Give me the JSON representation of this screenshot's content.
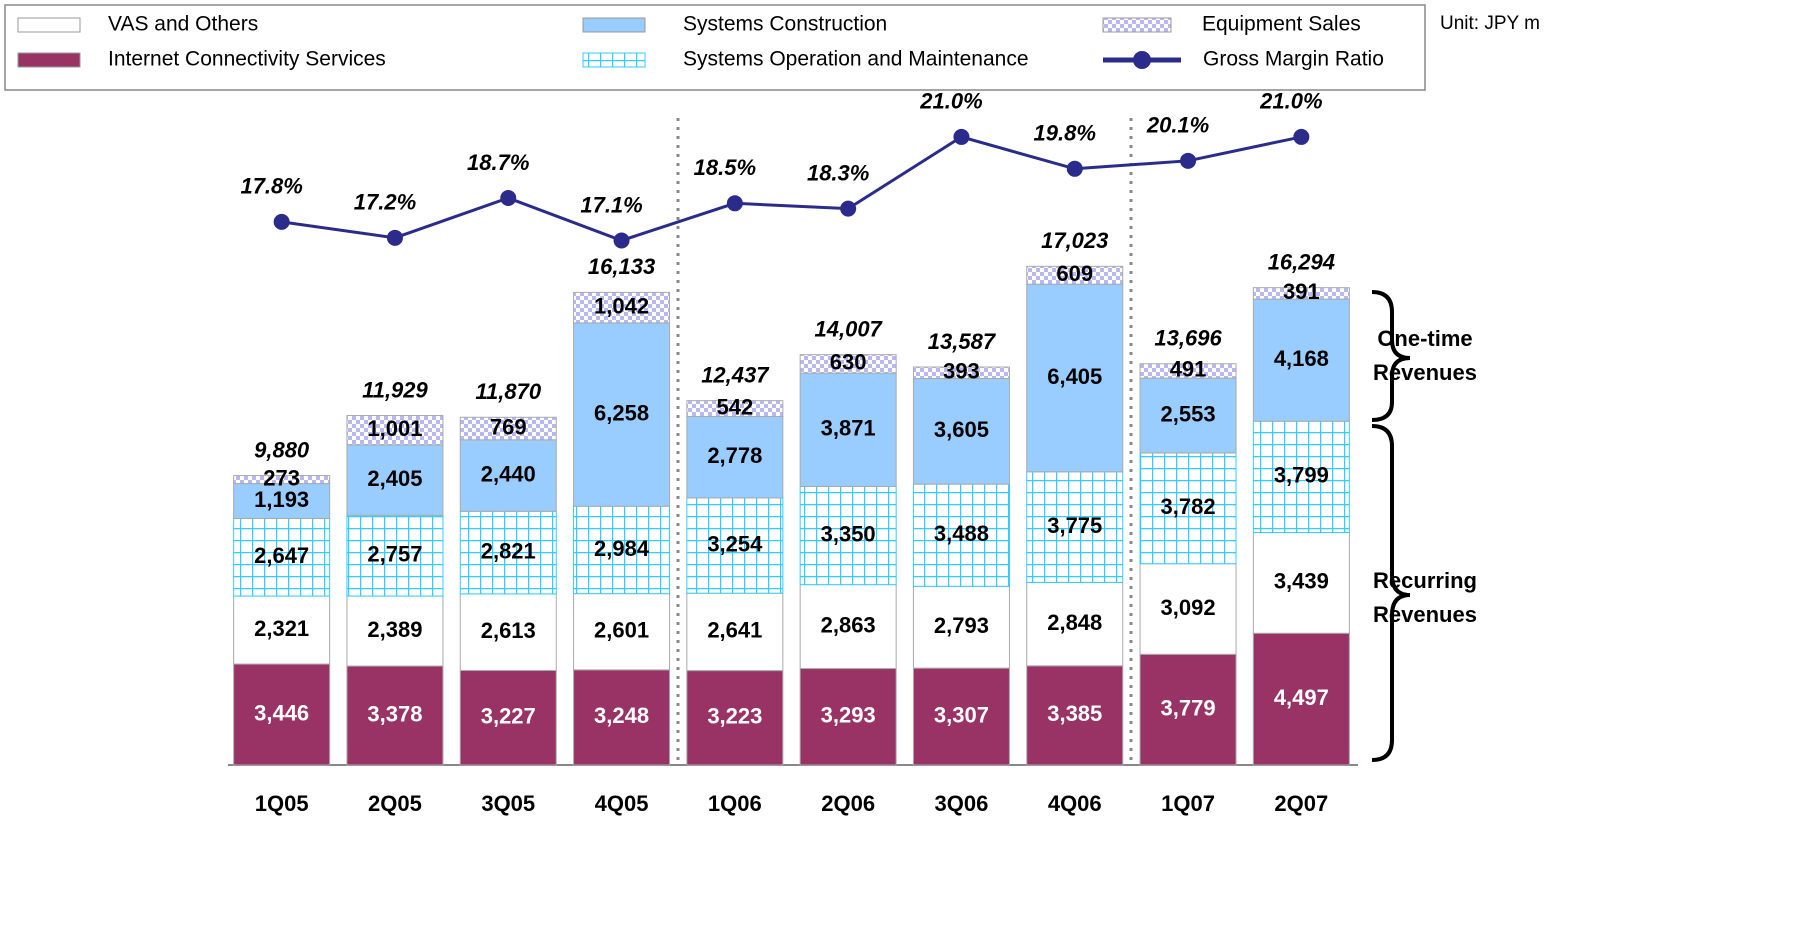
{
  "chart_data": {
    "type": "bar",
    "unit_note": "Unit: JPY m",
    "categories": [
      "1Q05",
      "2Q05",
      "3Q05",
      "4Q05",
      "1Q06",
      "2Q06",
      "3Q06",
      "4Q06",
      "1Q07",
      "2Q07"
    ],
    "stacked": true,
    "ylim": [
      0,
      22700
    ],
    "y2lim": [
      -2.65,
      22.39
    ],
    "series": [
      {
        "name": "Internet Connectivity Services",
        "color": "#993366",
        "label_color": "#ffffff",
        "values": [
          3446,
          3378,
          3227,
          3248,
          3223,
          3293,
          3307,
          3385,
          3779,
          4497
        ],
        "value_labels": [
          "3,446",
          "3,378",
          "3,227",
          "3,248",
          "3,223",
          "3,293",
          "3,307",
          "3,385",
          "3,779",
          "4,497"
        ]
      },
      {
        "name": "VAS and Others",
        "color": "#ffffff",
        "label_color": "#000000",
        "values": [
          2321,
          2389,
          2613,
          2601,
          2641,
          2863,
          2793,
          2848,
          3092,
          3439
        ],
        "value_labels": [
          "2,321",
          "2,389",
          "2,613",
          "2,601",
          "2,641",
          "2,863",
          "2,793",
          "2,848",
          "3,092",
          "3,439"
        ]
      },
      {
        "name": "Systems Operation and Maintenance",
        "color": "#33ccff",
        "pattern": "grid",
        "label_color": "#000000",
        "values": [
          2647,
          2757,
          2821,
          2984,
          3254,
          3350,
          3488,
          3775,
          3782,
          3799
        ],
        "value_labels": [
          "2,647",
          "2,757",
          "2,821",
          "2,984",
          "3,254",
          "3,350",
          "3,488",
          "3,775",
          "3,782",
          "3,799"
        ]
      },
      {
        "name": "Systems Construction",
        "color": "#99ccff",
        "label_color": "#000000",
        "values": [
          1193,
          2405,
          2440,
          6258,
          2778,
          3871,
          3605,
          6405,
          2553,
          4168
        ],
        "value_labels": [
          "1,193",
          "2,405",
          "2,440",
          "6,258",
          "2,778",
          "3,871",
          "3,605",
          "6,405",
          "2,553",
          "4,168"
        ]
      },
      {
        "name": "Equipment Sales",
        "color": "#ccccff",
        "pattern": "checker",
        "label_color": "#000000",
        "values": [
          273,
          1001,
          769,
          1042,
          542,
          630,
          393,
          609,
          491,
          391
        ],
        "value_labels": [
          "273",
          "1,001",
          "769",
          "1,042",
          "542",
          "630",
          "393",
          "609",
          "491",
          "391"
        ]
      },
      {
        "name": "Gross Margin Ratio",
        "type": "line",
        "axis": "y2",
        "color": "#2b2b8c",
        "values": [
          17.8,
          17.2,
          18.7,
          17.1,
          18.5,
          18.3,
          21.0,
          19.8,
          20.1,
          21.0
        ],
        "value_labels": [
          "17.8%",
          "17.2%",
          "18.7%",
          "17.1%",
          "18.5%",
          "18.3%",
          "21.0%",
          "19.8%",
          "20.1%",
          "21.0%"
        ]
      }
    ],
    "totals": {
      "values": [
        9880,
        11929,
        11870,
        16133,
        12437,
        14007,
        13587,
        17023,
        13696,
        16294
      ],
      "value_labels": [
        "9,880",
        "11,929",
        "11,870",
        "16,133",
        "12,437",
        "14,007",
        "13,587",
        "17,023",
        "13,696",
        "16,294"
      ]
    },
    "annotations": {
      "one_time": [
        "One-time",
        "Revenues"
      ],
      "recurring": [
        "Recurring",
        "Revenues"
      ]
    }
  }
}
